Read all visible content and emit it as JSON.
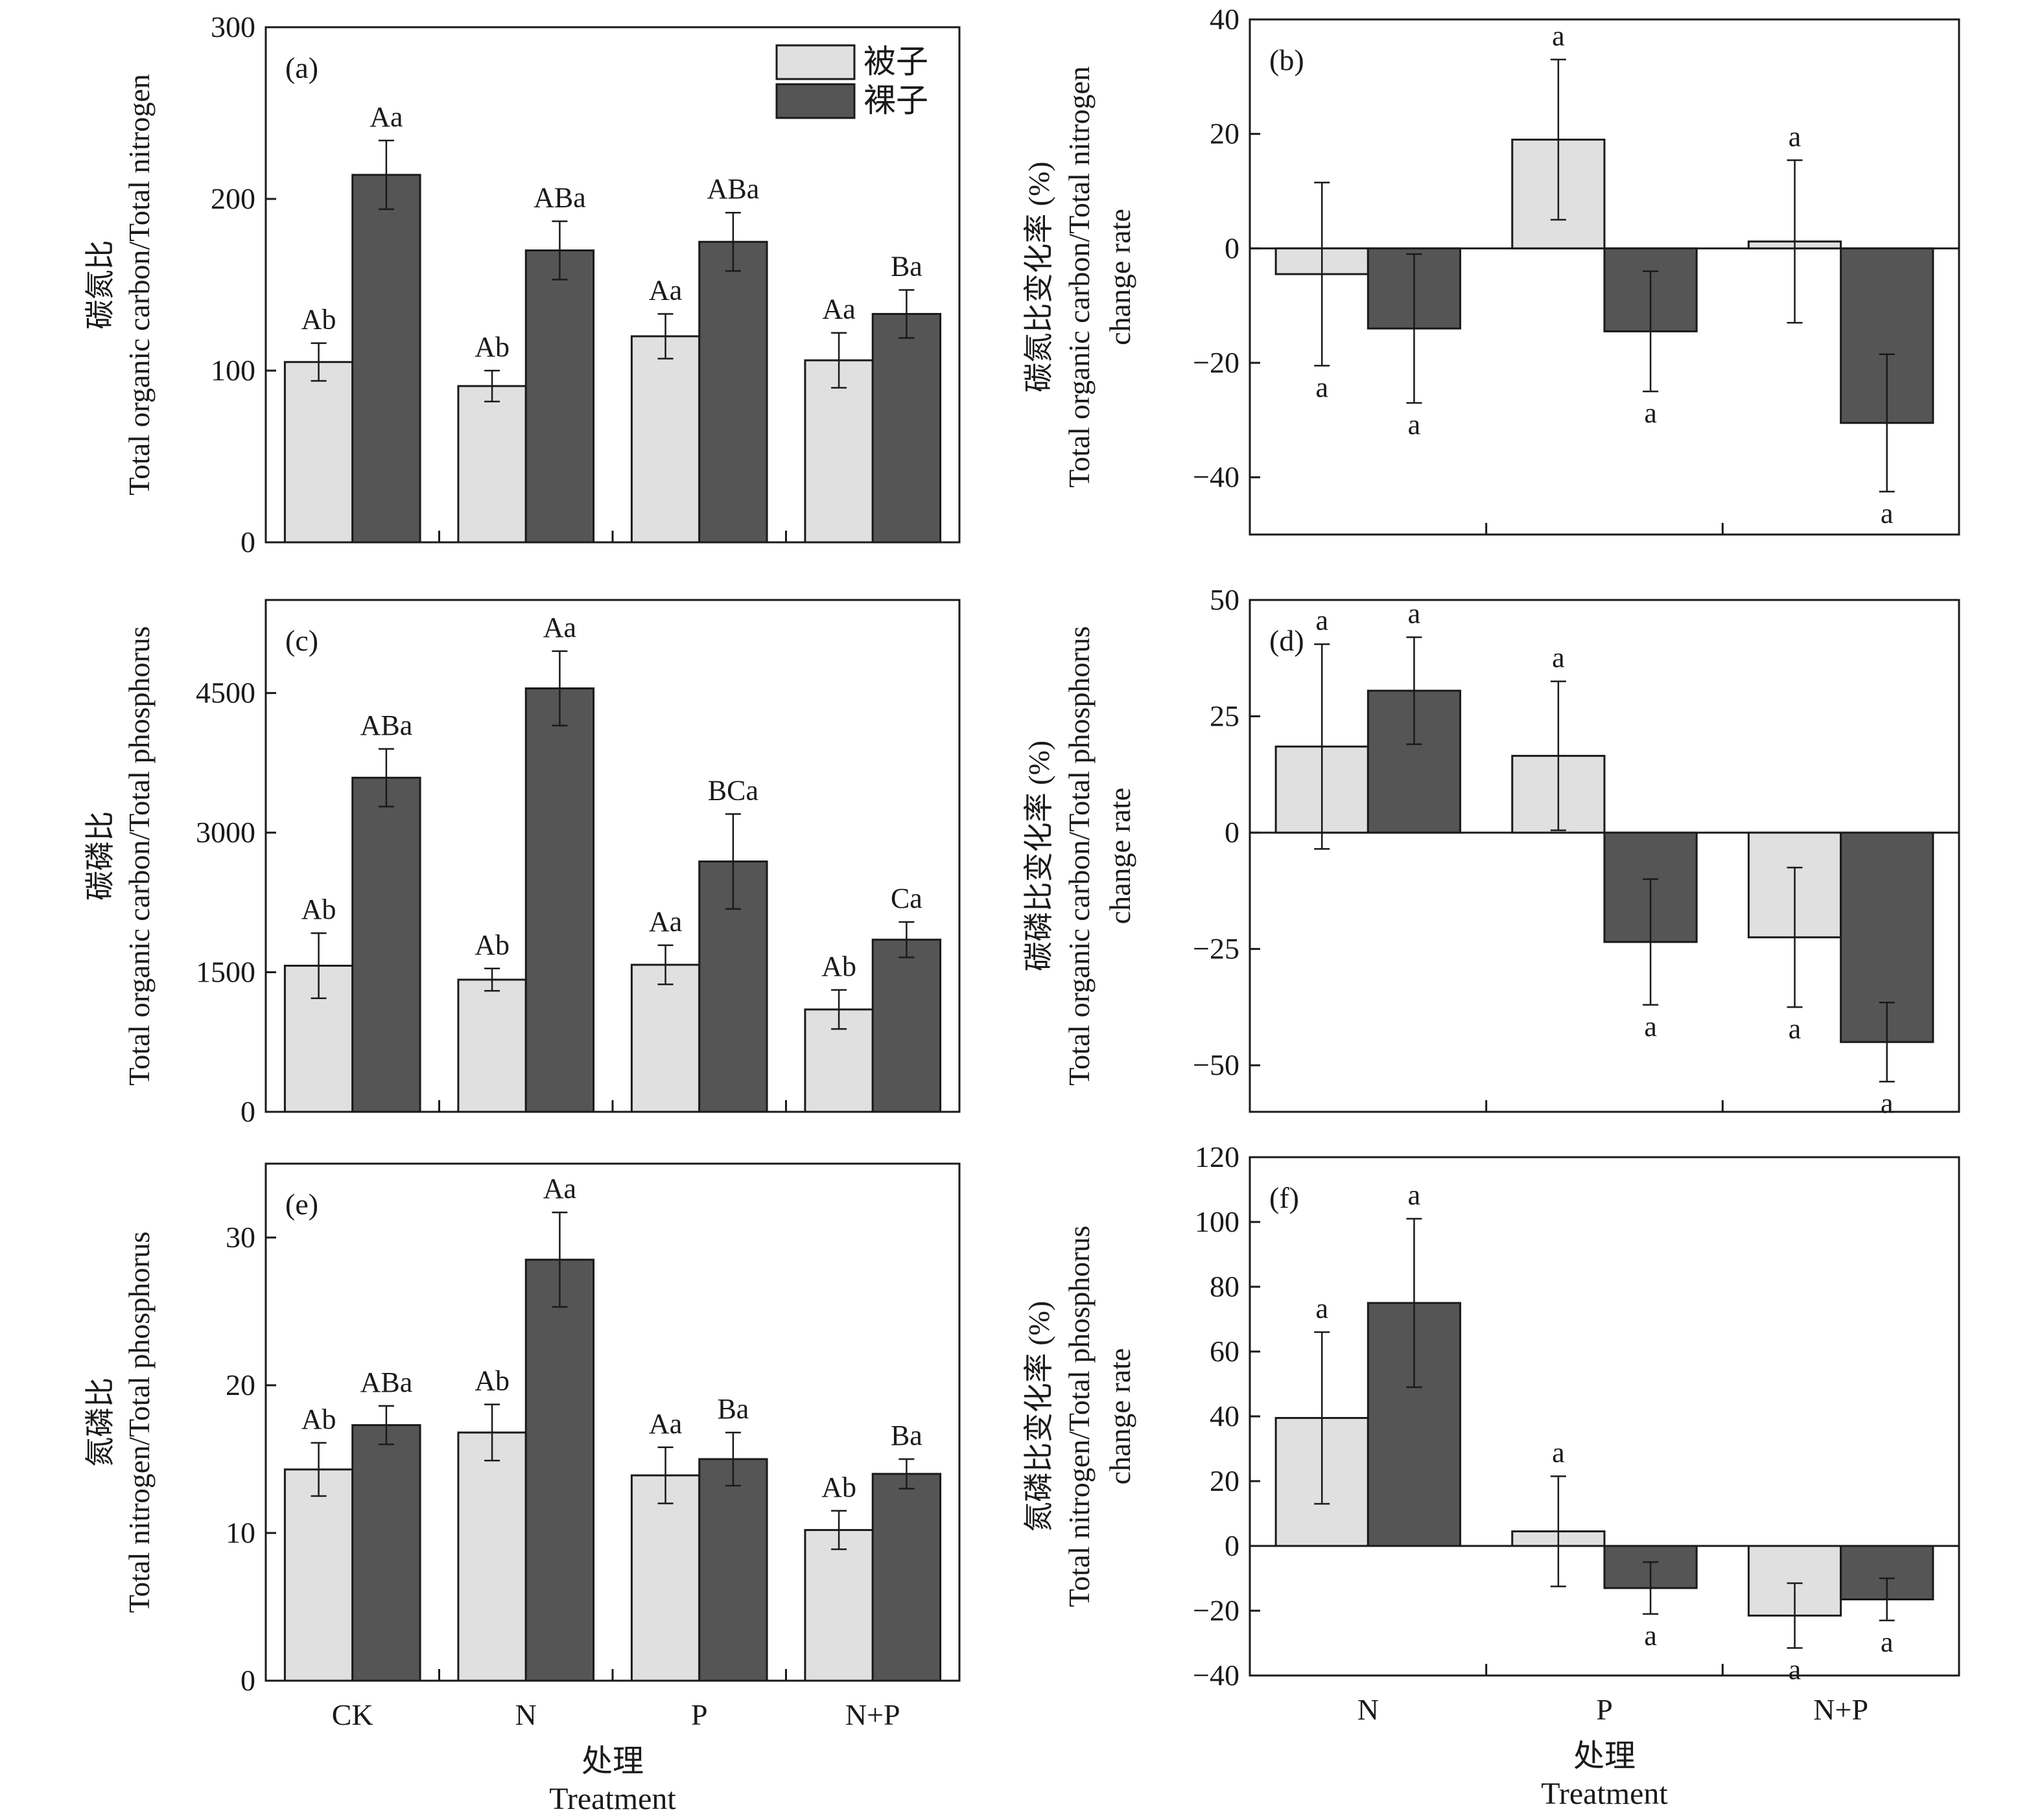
{
  "colors": {
    "series1": "#e0e0e0",
    "series2": "#555555",
    "axis": "#1a1a1a"
  },
  "legend": [
    "被子",
    "裸子"
  ],
  "x_title": {
    "cn": "处理",
    "en": "Treatment"
  },
  "chart_data": [
    {
      "panel": "(a)",
      "type": "bar",
      "ylabel_cn": "碳氮比",
      "ylabel_en": "Total organic carbon/Total nitrogen",
      "ylabel_en2": "",
      "categories": [
        "CK",
        "N",
        "P",
        "N+P"
      ],
      "ylim": [
        0,
        300
      ],
      "yticks": [
        0,
        100,
        200,
        300
      ],
      "ytick_labels": [
        "0",
        "100",
        "200",
        "300"
      ],
      "series": [
        {
          "name": "被子",
          "values": [
            105,
            91,
            120,
            106
          ],
          "errors": [
            11,
            9,
            13,
            16
          ],
          "labels": [
            "Ab",
            "Ab",
            "Aa",
            "Aa"
          ]
        },
        {
          "name": "裸子",
          "values": [
            214,
            170,
            175,
            133
          ],
          "errors": [
            20,
            17,
            17,
            14
          ],
          "labels": [
            "Aa",
            "ABa",
            "ABa",
            "Ba"
          ]
        }
      ]
    },
    {
      "panel": "(b)",
      "type": "bar",
      "ylabel_cn": "碳氮比变化率 (%)",
      "ylabel_en": "Total organic carbon/Total nitrogen",
      "ylabel_en2": "change rate",
      "categories": [
        "N",
        "P",
        "N+P"
      ],
      "ylim": [
        -50,
        40
      ],
      "yticks": [
        -40,
        -20,
        0,
        20,
        40
      ],
      "ytick_labels": [
        "−40",
        "−20",
        "0",
        "20",
        "40"
      ],
      "series": [
        {
          "name": "被子",
          "values": [
            -4.5,
            19,
            1.2
          ],
          "errors": [
            16,
            14,
            14.2
          ],
          "labels": [
            "a",
            "a",
            "a"
          ]
        },
        {
          "name": "裸子",
          "values": [
            -14,
            -14.5,
            -30.5
          ],
          "errors": [
            13,
            10.5,
            12
          ],
          "labels": [
            "a",
            "a",
            "a"
          ]
        }
      ]
    },
    {
      "panel": "(c)",
      "type": "bar",
      "ylabel_cn": "碳磷比",
      "ylabel_en": "Total organic carbon/Total phosphorus",
      "ylabel_en2": "",
      "categories": [
        "CK",
        "N",
        "P",
        "N+P"
      ],
      "ylim": [
        0,
        5500
      ],
      "yticks": [
        0,
        1500,
        3000,
        4500
      ],
      "ytick_labels": [
        "0",
        "1500",
        "3000",
        "4500"
      ],
      "series": [
        {
          "name": "被子",
          "values": [
            1570,
            1420,
            1580,
            1100
          ],
          "errors": [
            350,
            120,
            210,
            210
          ],
          "labels": [
            "Ab",
            "Ab",
            "Aa",
            "Ab"
          ]
        },
        {
          "name": "裸子",
          "values": [
            3590,
            4550,
            2690,
            1850
          ],
          "errors": [
            310,
            400,
            510,
            190
          ],
          "labels": [
            "ABa",
            "Aa",
            "BCa",
            "Ca"
          ]
        }
      ]
    },
    {
      "panel": "(d)",
      "type": "bar",
      "ylabel_cn": "碳磷比变化率 (%)",
      "ylabel_en": "Total organic carbon/Total phosphorus",
      "ylabel_en2": "change rate",
      "categories": [
        "N",
        "P",
        "N+P"
      ],
      "ylim": [
        -60,
        50
      ],
      "yticks": [
        -50,
        -25,
        0,
        25,
        50
      ],
      "ytick_labels": [
        "−50",
        "−25",
        "0",
        "25",
        "50"
      ],
      "series": [
        {
          "name": "被子",
          "values": [
            18.5,
            16.5,
            -22.5
          ],
          "errors": [
            22,
            16,
            15
          ],
          "labels": [
            "a",
            "a",
            "a"
          ]
        },
        {
          "name": "裸子",
          "values": [
            30.5,
            -23.5,
            -45
          ],
          "errors": [
            11.5,
            13.5,
            8.5
          ],
          "labels": [
            "a",
            "a",
            "a"
          ]
        }
      ]
    },
    {
      "panel": "(e)",
      "type": "bar",
      "ylabel_cn": "氮磷比",
      "ylabel_en": "Total nitrogen/Total phosphorus",
      "ylabel_en2": "",
      "categories": [
        "CK",
        "N",
        "P",
        "N+P"
      ],
      "ylim": [
        0,
        35
      ],
      "yticks": [
        0,
        10,
        20,
        30
      ],
      "ytick_labels": [
        "0",
        "10",
        "20",
        "30"
      ],
      "series": [
        {
          "name": "被子",
          "values": [
            14.3,
            16.8,
            13.9,
            10.2
          ],
          "errors": [
            1.8,
            1.9,
            1.9,
            1.3
          ],
          "labels": [
            "Ab",
            "Ab",
            "Aa",
            "Ab"
          ]
        },
        {
          "name": "裸子",
          "values": [
            17.3,
            28.5,
            15.0,
            14.0
          ],
          "errors": [
            1.3,
            3.2,
            1.8,
            1.0
          ],
          "labels": [
            "ABa",
            "Aa",
            "Ba",
            "Ba"
          ]
        }
      ]
    },
    {
      "panel": "(f)",
      "type": "bar",
      "ylabel_cn": "氮磷比变化率 (%)",
      "ylabel_en": "Total nitrogen/Total phosphorus",
      "ylabel_en2": "change rate",
      "categories": [
        "N",
        "P",
        "N+P"
      ],
      "ylim": [
        -40,
        120
      ],
      "yticks": [
        -40,
        -20,
        0,
        20,
        40,
        60,
        80,
        100,
        120
      ],
      "ytick_labels": [
        "−40",
        "−20",
        "0",
        "20",
        "40",
        "60",
        "80",
        "100",
        "120"
      ],
      "series": [
        {
          "name": "被子",
          "values": [
            39.5,
            4.5,
            -21.5
          ],
          "errors": [
            26.5,
            17,
            10
          ],
          "labels": [
            "a",
            "a",
            "a"
          ]
        },
        {
          "name": "裸子",
          "values": [
            75,
            -13,
            -16.5
          ],
          "errors": [
            26,
            8,
            6.5
          ],
          "labels": [
            "a",
            "a",
            "a"
          ]
        }
      ]
    }
  ]
}
